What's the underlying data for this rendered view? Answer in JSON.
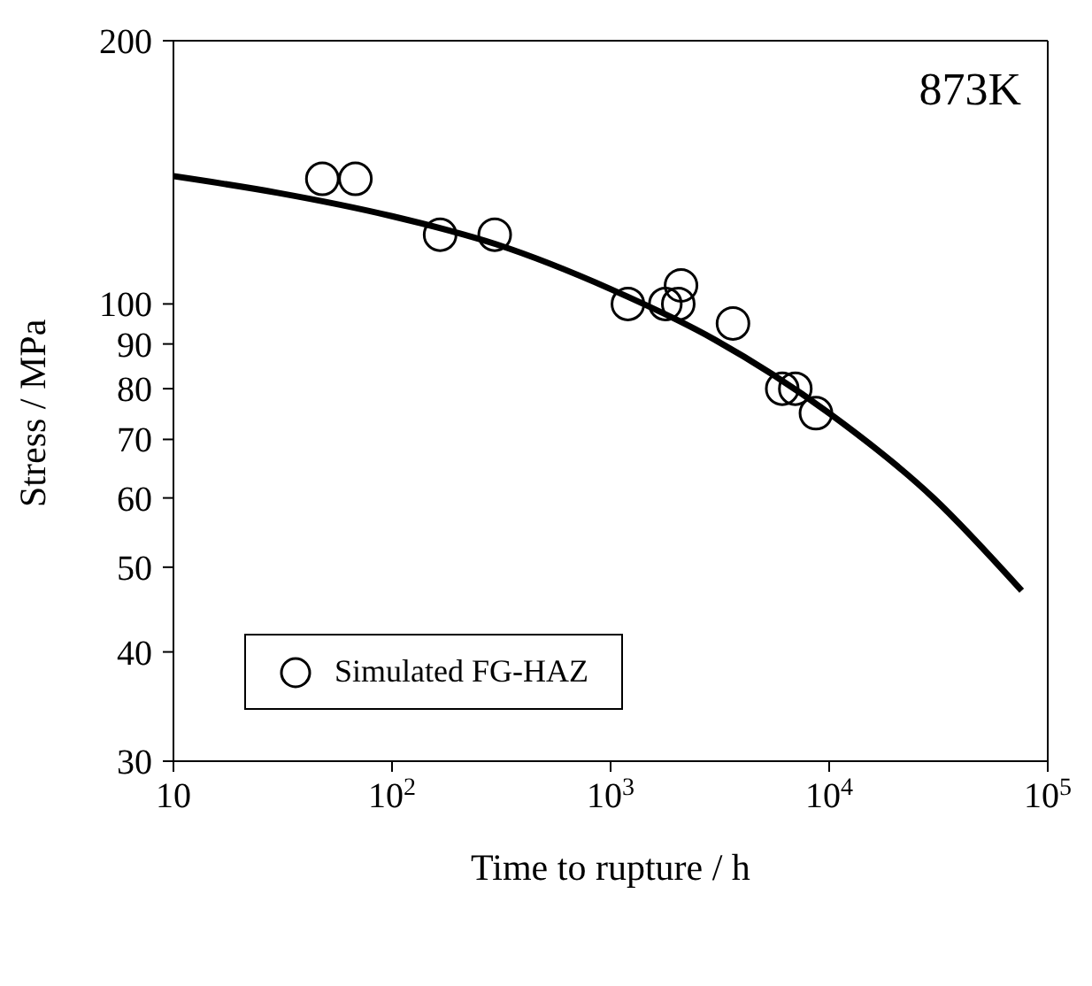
{
  "chart_data": {
    "type": "scatter",
    "xlabel": "Time to rupture / h",
    "ylabel": "Stress / MPa",
    "log": "xy",
    "xlim": [
      10,
      100000
    ],
    "xticks": [
      10,
      {
        "value": 100,
        "label": "10$^{2}$"
      },
      {
        "value": 1000,
        "label": "10$^{3}$"
      },
      {
        "value": 10000,
        "label": "10$^{4}$"
      },
      {
        "value": 100000,
        "label": "10$^{5}$"
      }
    ],
    "ylim": [
      30,
      200
    ],
    "yticks": [
      30,
      40,
      50,
      60,
      70,
      80,
      90,
      100,
      200
    ],
    "legend": "bottom left",
    "marker": "circle",
    "annotations": [
      "873K"
    ],
    "series": [
      {
        "name": "Simulated FG-HAZ",
        "color": "#000000",
        "x": [
          48,
          68,
          166,
          295,
          1200,
          1780,
          2040,
          2100,
          3630,
          6100,
          7000,
          8700
        ],
        "values": [
          139,
          139,
          120,
          120,
          100,
          100,
          100,
          105,
          95,
          80,
          80,
          75
        ]
      },
      {
        "type": "line",
        "color": "#000000",
        "marker": "none",
        "x": [
          10,
          30,
          100,
          300,
          1000,
          3000,
          10000,
          30000,
          76000
        ],
        "values": [
          140,
          134,
          126,
          117,
          104,
          91,
          75,
          60,
          47
        ]
      }
    ]
  }
}
